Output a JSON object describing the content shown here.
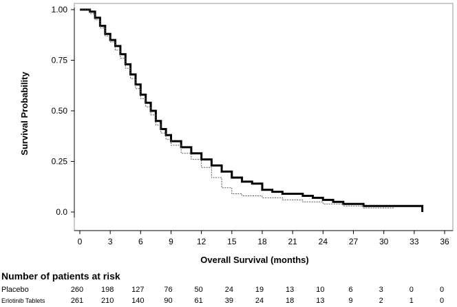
{
  "chart_data": {
    "type": "line",
    "xlabel": "Overall Survival (months)",
    "ylabel": "Survival Probability",
    "xlim": [
      0,
      36
    ],
    "ylim": [
      0,
      1
    ],
    "x_ticks": [
      "0",
      "3",
      "6",
      "9",
      "12",
      "15",
      "18",
      "21",
      "24",
      "27",
      "30",
      "33",
      "36"
    ],
    "y_ticks": [
      "0.0",
      "0.25",
      "0.50",
      "0.75",
      "1.00"
    ],
    "y_tick_values": [
      0,
      0.25,
      0.5,
      0.75,
      1.0
    ],
    "grid": false,
    "series": [
      {
        "name": "Erlotinib Tablets",
        "style": "thick-solid",
        "color": "#000000",
        "points": [
          [
            0,
            1.0
          ],
          [
            0.5,
            1.0
          ],
          [
            1,
            0.99
          ],
          [
            1.5,
            0.96
          ],
          [
            2,
            0.92
          ],
          [
            2.5,
            0.88
          ],
          [
            3,
            0.85
          ],
          [
            3.5,
            0.82
          ],
          [
            4,
            0.78
          ],
          [
            4.5,
            0.73
          ],
          [
            5,
            0.68
          ],
          [
            5.5,
            0.63
          ],
          [
            6,
            0.58
          ],
          [
            6.5,
            0.54
          ],
          [
            7,
            0.5
          ],
          [
            7.5,
            0.45
          ],
          [
            8,
            0.41
          ],
          [
            8.5,
            0.38
          ],
          [
            9,
            0.35
          ],
          [
            10,
            0.32
          ],
          [
            11,
            0.29
          ],
          [
            12,
            0.26
          ],
          [
            13,
            0.23
          ],
          [
            14,
            0.2
          ],
          [
            15,
            0.17
          ],
          [
            16,
            0.15
          ],
          [
            17,
            0.14
          ],
          [
            18,
            0.11
          ],
          [
            19,
            0.1
          ],
          [
            20,
            0.09
          ],
          [
            21,
            0.09
          ],
          [
            22,
            0.08
          ],
          [
            23,
            0.07
          ],
          [
            24,
            0.06
          ],
          [
            25,
            0.05
          ],
          [
            26,
            0.04
          ],
          [
            27,
            0.04
          ],
          [
            28,
            0.03
          ],
          [
            29,
            0.03
          ],
          [
            30,
            0.03
          ],
          [
            31,
            0.03
          ],
          [
            32,
            0.03
          ],
          [
            33,
            0.03
          ],
          [
            33.8,
            0.03
          ],
          [
            33.8,
            0.0
          ]
        ]
      },
      {
        "name": "Placebo",
        "style": "thin-dotted",
        "color": "#555555",
        "points": [
          [
            0,
            1.0
          ],
          [
            0.5,
            1.0
          ],
          [
            1,
            0.98
          ],
          [
            1.5,
            0.95
          ],
          [
            2,
            0.91
          ],
          [
            2.5,
            0.87
          ],
          [
            3,
            0.84
          ],
          [
            3.5,
            0.8
          ],
          [
            4,
            0.76
          ],
          [
            4.5,
            0.71
          ],
          [
            5,
            0.66
          ],
          [
            5.5,
            0.61
          ],
          [
            6,
            0.56
          ],
          [
            6.5,
            0.52
          ],
          [
            7,
            0.48
          ],
          [
            7.5,
            0.43
          ],
          [
            8,
            0.39
          ],
          [
            8.5,
            0.36
          ],
          [
            9,
            0.33
          ],
          [
            10,
            0.29
          ],
          [
            11,
            0.26
          ],
          [
            12,
            0.22
          ],
          [
            13,
            0.17
          ],
          [
            14,
            0.12
          ],
          [
            15,
            0.09
          ],
          [
            16,
            0.08
          ],
          [
            17,
            0.08
          ],
          [
            18,
            0.07
          ],
          [
            19,
            0.07
          ],
          [
            20,
            0.06
          ],
          [
            21,
            0.06
          ],
          [
            22,
            0.05
          ],
          [
            23,
            0.05
          ],
          [
            24,
            0.04
          ],
          [
            25,
            0.04
          ],
          [
            26,
            0.03
          ],
          [
            27,
            0.03
          ],
          [
            28,
            0.02
          ],
          [
            29,
            0.02
          ],
          [
            30,
            0.02
          ],
          [
            31,
            0.02
          ]
        ]
      }
    ]
  },
  "risk_table": {
    "title": "Number of patients at risk",
    "rows": [
      {
        "label": "Placebo",
        "values": [
          "260",
          "198",
          "127",
          "76",
          "50",
          "24",
          "19",
          "13",
          "10",
          "6",
          "3",
          "0",
          "0"
        ]
      },
      {
        "label": "Erlotinib Tablets",
        "values": [
          "261",
          "210",
          "140",
          "90",
          "61",
          "39",
          "24",
          "18",
          "13",
          "9",
          "2",
          "1",
          "0"
        ]
      }
    ]
  }
}
